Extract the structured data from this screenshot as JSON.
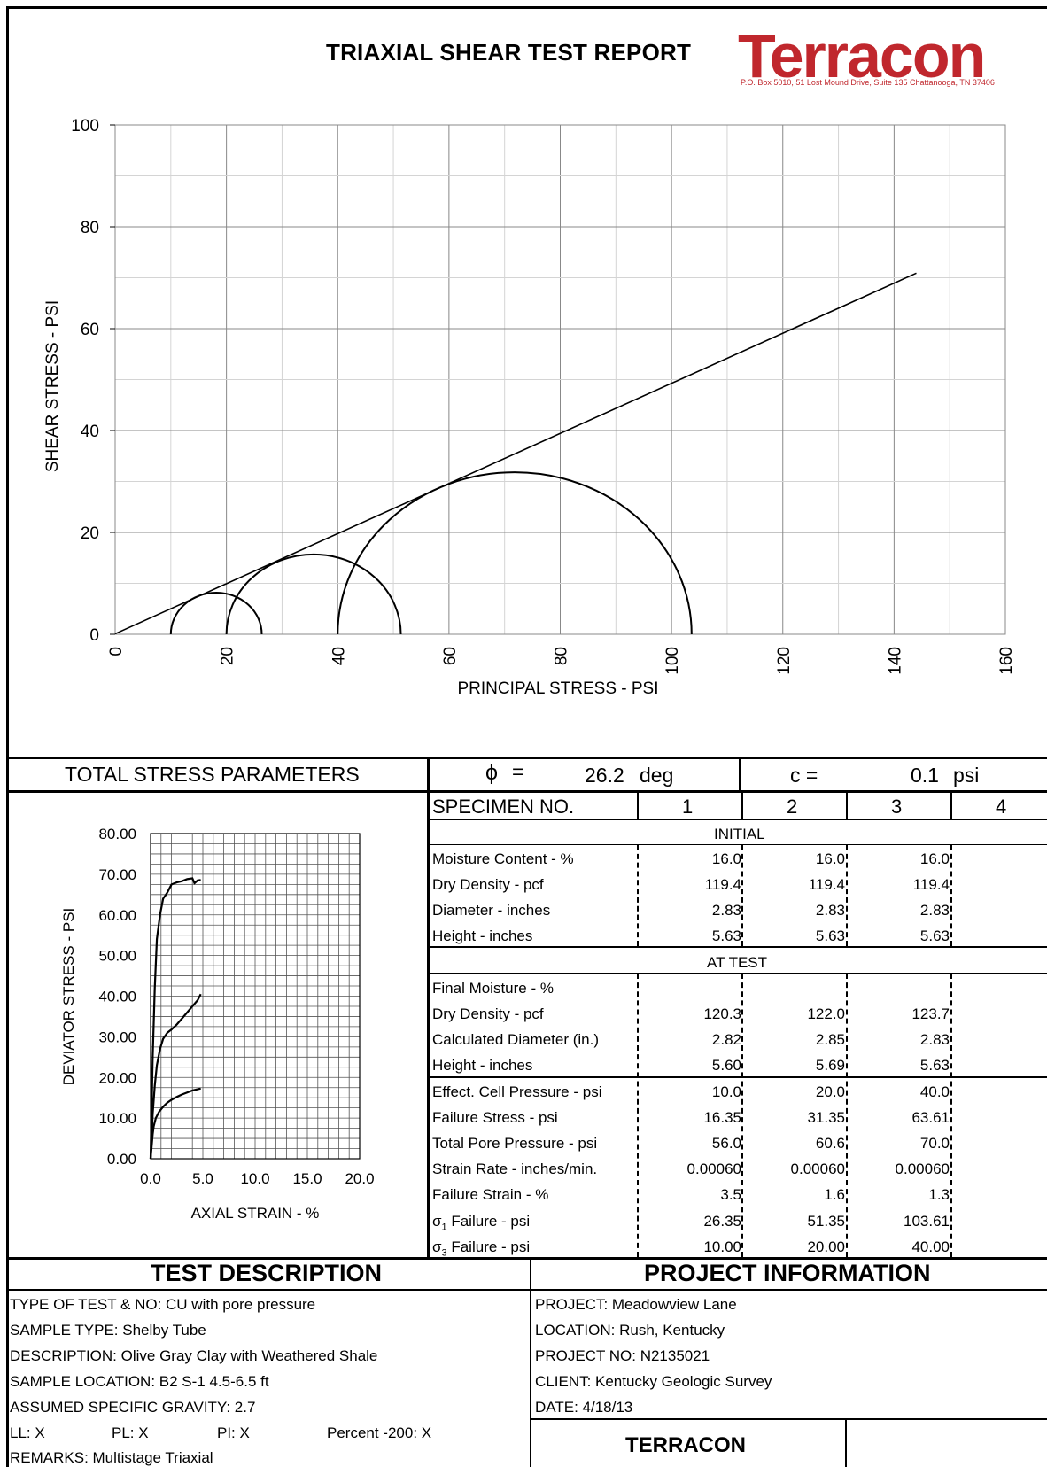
{
  "report": {
    "title": "TRIAXIAL SHEAR TEST REPORT",
    "logo_text": "Terracon",
    "logo_address": "P.O. Box 5010,  51 Lost Mound Drive, Suite 135  Chattanooga, TN 37406",
    "brand_color": "#c0272d"
  },
  "chart_data": [
    {
      "type": "line",
      "title": "",
      "xlabel": "PRINCIPAL  STRESS - PSI",
      "ylabel": "SHEAR STRESS - PSI",
      "xlim": [
        0,
        160
      ],
      "ylim": [
        0,
        100
      ],
      "x_ticks": [
        "0",
        "20",
        "40",
        "60",
        "80",
        "100",
        "120",
        "140",
        "160"
      ],
      "y_ticks": [
        "0",
        "20",
        "40",
        "60",
        "80",
        "100"
      ],
      "grid": true,
      "failure_envelope": {
        "x": [
          0,
          144
        ],
        "y": [
          0.1,
          70.9
        ]
      },
      "mohr_circles": [
        {
          "sigma3": 10.0,
          "sigma1": 26.35
        },
        {
          "sigma3": 20.0,
          "sigma1": 51.35
        },
        {
          "sigma3": 40.0,
          "sigma1": 103.61
        }
      ]
    },
    {
      "type": "line",
      "title": "",
      "xlabel": "AXIAL STRAIN - %",
      "ylabel": "DEVIATOR STRESS - PSI",
      "xlim": [
        0,
        20
      ],
      "ylim": [
        0,
        80
      ],
      "x_ticks": [
        "0.0",
        "5.0",
        "10.0",
        "15.0",
        "20.0"
      ],
      "y_ticks": [
        "0.00",
        "10.00",
        "20.00",
        "30.00",
        "40.00",
        "50.00",
        "60.00",
        "70.00",
        "80.00"
      ],
      "grid": true,
      "series": [
        {
          "x": [
            0,
            0.1,
            0.2,
            0.3,
            0.5,
            0.8,
            1.2,
            1.6,
            2.0,
            2.5,
            3.0,
            3.5,
            4.0,
            4.5,
            4.8
          ],
          "y": [
            0,
            3,
            6,
            8,
            10,
            11.5,
            12.8,
            13.8,
            14.5,
            15.2,
            15.8,
            16.3,
            16.8,
            17.1,
            17.3
          ]
        },
        {
          "x": [
            0,
            0.1,
            0.2,
            0.4,
            0.6,
            0.9,
            1.2,
            1.6,
            2.0,
            2.5,
            3.0,
            3.5,
            4.0,
            4.5,
            4.8
          ],
          "y": [
            0,
            5,
            11,
            18,
            23,
            27,
            29.5,
            31,
            31.8,
            33,
            34.5,
            36,
            37.5,
            39,
            40.5
          ]
        },
        {
          "x": [
            0,
            0.1,
            0.2,
            0.4,
            0.6,
            0.9,
            1.2,
            1.6,
            2.0,
            2.5,
            3.0,
            3.5,
            4.0,
            4.2,
            4.5,
            4.8
          ],
          "y": [
            0,
            12,
            25,
            42,
            54,
            60,
            64,
            65.5,
            67.5,
            68,
            68.3,
            68.8,
            69,
            67.8,
            68.5,
            68.6
          ]
        }
      ]
    }
  ],
  "params": {
    "label": "TOTAL STRESS PARAMETERS",
    "phi_symbol": "ϕ",
    "phi_eq": "=",
    "phi_value": "26.2",
    "phi_unit": "deg",
    "c_label": "c =",
    "c_value": "0.1",
    "c_unit": "psi"
  },
  "specimen_table": {
    "header_label": "SPECIMEN NO.",
    "columns": [
      "1",
      "2",
      "3",
      "4"
    ],
    "initial_label": "INITIAL",
    "at_test_label": "AT TEST",
    "initial_rows": [
      {
        "label": "Moisture Content - %",
        "values": [
          "16.0",
          "16.0",
          "16.0",
          ""
        ]
      },
      {
        "label": "Dry Density - pcf",
        "values": [
          "119.4",
          "119.4",
          "119.4",
          ""
        ]
      },
      {
        "label": "Diameter - inches",
        "values": [
          "2.83",
          "2.83",
          "2.83",
          ""
        ]
      },
      {
        "label": "Height - inches",
        "values": [
          "5.63",
          "5.63",
          "5.63",
          ""
        ]
      }
    ],
    "at_test_rows": [
      {
        "label": "Final Moisture - %",
        "values": [
          "",
          "",
          "",
          ""
        ]
      },
      {
        "label": "Dry Density - pcf",
        "values": [
          "120.3",
          "122.0",
          "123.7",
          ""
        ]
      },
      {
        "label": "Calculated Diameter (in.)",
        "values": [
          "2.82",
          "2.85",
          "2.83",
          ""
        ]
      },
      {
        "label": "Height - inches",
        "values": [
          "5.60",
          "5.69",
          "5.63",
          ""
        ]
      }
    ],
    "failure_rows": [
      {
        "label": "Effect. Cell Pressure - psi",
        "values": [
          "10.0",
          "20.0",
          "40.0",
          ""
        ]
      },
      {
        "label": "Failure Stress - psi",
        "values": [
          "16.35",
          "31.35",
          "63.61",
          ""
        ]
      },
      {
        "label": "Total Pore Pressure - psi",
        "values": [
          "56.0",
          "60.6",
          "70.0",
          ""
        ]
      },
      {
        "label": "Strain Rate - inches/min.",
        "values": [
          "0.00060",
          "0.00060",
          "0.00060",
          ""
        ]
      },
      {
        "label": "Failure Strain - %",
        "values": [
          "3.5",
          "1.6",
          "1.3",
          ""
        ]
      },
      {
        "label": "σ1 Failure - psi",
        "sym": "σ",
        "sub": "1",
        "rest": " Failure - psi",
        "values": [
          "26.35",
          "51.35",
          "103.61",
          ""
        ]
      },
      {
        "label": "σ3 Failure - psi",
        "sym": "σ",
        "sub": "3",
        "rest": " Failure - psi",
        "values": [
          "10.00",
          "20.00",
          "40.00",
          ""
        ]
      }
    ]
  },
  "test_description": {
    "title": "TEST DESCRIPTION",
    "type": "TYPE OF TEST & NO:  CU with pore pressure",
    "sample_type": "SAMPLE TYPE: Shelby Tube",
    "description": "DESCRIPTION: Olive Gray Clay with Weathered Shale",
    "sample_location": "SAMPLE LOCATION: B2 S-1 4.5-6.5 ft",
    "gravity": "ASSUMED SPECIFIC GRAVITY:  2.7",
    "ll": "LL:  X",
    "pl": "PL:  X",
    "pi": "PI:  X",
    "percent200": "Percent -200: X",
    "remarks": "REMARKS: Multistage Triaxial"
  },
  "project_info": {
    "title": "PROJECT INFORMATION",
    "project": "PROJECT: Meadowview Lane",
    "location": "LOCATION: Rush, Kentucky",
    "project_no": "PROJECT NO: N2135021",
    "client": "CLIENT: Kentucky Geologic Survey",
    "date": "DATE: 4/18/13",
    "company": "TERRACON"
  }
}
